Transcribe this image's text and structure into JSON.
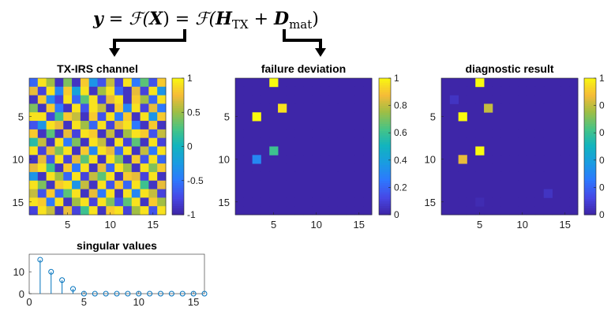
{
  "equation": {
    "parts": [
      "y",
      " = ",
      "ℱ(",
      "X",
      ") = ",
      "ℱ(",
      "H",
      "TX",
      " + ",
      "D",
      "mat",
      ")"
    ]
  },
  "chart_data": [
    {
      "type": "heatmap",
      "title": "TX-IRS channel",
      "x_ticks": [
        "5",
        "10",
        "15"
      ],
      "y_ticks": [
        "5",
        "10",
        "15"
      ],
      "colorbar_ticks": [
        "1",
        "0.5",
        "0",
        "-0.5",
        "-1"
      ],
      "clim": [
        -1,
        1
      ],
      "colormap": "parula",
      "grid": false,
      "values": [
        [
          -0.6,
          0.9,
          0.5,
          -0.9,
          0.4,
          -0.9,
          0.8,
          -0.3,
          -0.7,
          0.6,
          -0.8,
          0.9,
          -0.5,
          0.3,
          -0.7,
          0.8
        ],
        [
          0.7,
          -0.8,
          0.9,
          -0.4,
          0.8,
          -0.2,
          0.9,
          -0.9,
          0.5,
          0.9,
          -0.6,
          -0.9,
          0.7,
          -0.8,
          0.9,
          -0.3
        ],
        [
          -0.9,
          0.8,
          -0.4,
          -0.8,
          0.9,
          -0.6,
          0.3,
          0.9,
          -0.8,
          0.7,
          0.9,
          -0.9,
          0.8,
          0.5,
          -0.6,
          0.9
        ],
        [
          0.4,
          -0.9,
          0.8,
          -0.5,
          -0.9,
          0.9,
          -0.7,
          0.9,
          0.6,
          -0.9,
          0.8,
          -0.4,
          0.9,
          -0.8,
          0.7,
          -0.5
        ],
        [
          0.9,
          0.9,
          -0.8,
          0.2,
          0.8,
          0.6,
          -0.9,
          0.8,
          -0.7,
          0.9,
          -0.5,
          0.8,
          -0.9,
          0.9,
          -0.3,
          0.8
        ],
        [
          -0.7,
          -0.3,
          0.9,
          0.7,
          -0.9,
          0.9,
          0.5,
          -0.6,
          0.9,
          -0.8,
          0.7,
          0.9,
          -0.5,
          -0.9,
          0.8,
          -0.9
        ],
        [
          0.8,
          -0.9,
          0.3,
          -0.9,
          0.7,
          -0.8,
          0.9,
          0.8,
          -0.9,
          0.6,
          -0.9,
          0.5,
          0.9,
          0.8,
          -0.7,
          0.6
        ],
        [
          0.1,
          0.6,
          -0.9,
          0.9,
          -0.5,
          0.4,
          -0.9,
          0.9,
          0.6,
          -0.9,
          0.9,
          -0.8,
          0.3,
          -0.9,
          0.9,
          -0.8
        ],
        [
          0.9,
          -0.8,
          0.7,
          0.4,
          0.9,
          -0.9,
          0.8,
          -0.4,
          0.9,
          0.7,
          -0.6,
          0.9,
          -0.9,
          0.6,
          -0.5,
          0.9
        ],
        [
          -0.9,
          0.7,
          -0.7,
          0.9,
          -0.8,
          0.7,
          0.3,
          0.9,
          -0.9,
          0.9,
          0.4,
          -0.9,
          0.8,
          -0.7,
          0.9,
          -0.6
        ],
        [
          0.7,
          0.9,
          0.2,
          -0.9,
          0.8,
          -0.5,
          0.9,
          -0.9,
          0.7,
          -0.6,
          0.9,
          0.5,
          -0.9,
          0.9,
          0.4,
          0.8
        ],
        [
          -0.3,
          -0.9,
          0.9,
          0.5,
          -0.6,
          0.9,
          -0.8,
          0.6,
          0.3,
          0.9,
          -0.9,
          0.8,
          0.7,
          -0.8,
          0.9,
          -0.9
        ],
        [
          0.9,
          0.4,
          -0.9,
          0.8,
          0.9,
          -0.3,
          0.6,
          -0.9,
          0.9,
          -0.7,
          0.8,
          -0.6,
          0.9,
          0.2,
          -0.9,
          0.7
        ],
        [
          0.6,
          -0.7,
          0.8,
          -0.6,
          0.3,
          0.9,
          -0.9,
          0.7,
          -0.5,
          0.9,
          -0.9,
          0.9,
          -0.4,
          0.9,
          0.6,
          -0.8
        ],
        [
          0.9,
          0.8,
          -0.5,
          0.9,
          -0.9,
          0.5,
          0.9,
          -0.8,
          0.9,
          0.4,
          -0.7,
          0.3,
          0.9,
          -0.9,
          0.8,
          0.5
        ],
        [
          -0.8,
          0.9,
          0.6,
          -0.9,
          0.7,
          -0.8,
          0.2,
          0.9,
          -0.9,
          0.8,
          0.9,
          -0.8,
          0.5,
          0.9,
          -0.7,
          0.9
        ]
      ]
    },
    {
      "type": "heatmap",
      "title": "failure deviation",
      "x_ticks": [
        "5",
        "10",
        "15"
      ],
      "y_ticks": [
        "5",
        "10",
        "15"
      ],
      "colorbar_ticks": [
        "1",
        "0.8",
        "0.6",
        "0.4",
        "0.2",
        "0"
      ],
      "clim": [
        0,
        1
      ],
      "colormap": "parula",
      "background_value": 0,
      "points": [
        {
          "x": 5,
          "y": 1,
          "v": 1.0
        },
        {
          "x": 6,
          "y": 4,
          "v": 0.95
        },
        {
          "x": 3,
          "y": 5,
          "v": 1.0
        },
        {
          "x": 5,
          "y": 9,
          "v": 0.6
        },
        {
          "x": 3,
          "y": 10,
          "v": 0.3
        }
      ]
    },
    {
      "type": "heatmap",
      "title": "diagnostic result",
      "x_ticks": [
        "5",
        "10",
        "15"
      ],
      "y_ticks": [
        "5",
        "10",
        "15"
      ],
      "colorbar_ticks": [
        "1",
        "0",
        "0",
        "0",
        "0",
        "0"
      ],
      "clim": [
        0,
        1
      ],
      "colormap": "parula",
      "background_value": 0,
      "points": [
        {
          "x": 5,
          "y": 1,
          "v": 1.0
        },
        {
          "x": 2,
          "y": 3,
          "v": 0.05
        },
        {
          "x": 6,
          "y": 4,
          "v": 0.8
        },
        {
          "x": 3,
          "y": 5,
          "v": 1.0
        },
        {
          "x": 5,
          "y": 9,
          "v": 1.0
        },
        {
          "x": 3,
          "y": 10,
          "v": 0.85
        },
        {
          "x": 13,
          "y": 14,
          "v": 0.05
        },
        {
          "x": 5,
          "y": 15,
          "v": 0.02
        }
      ]
    },
    {
      "type": "stem",
      "title": "singular values",
      "x": [
        1,
        2,
        3,
        4,
        5,
        6,
        7,
        8,
        9,
        10,
        11,
        12,
        13,
        14,
        15,
        16
      ],
      "values": [
        15.5,
        10,
        6.2,
        2.2,
        0,
        0,
        0,
        0,
        0,
        0,
        0,
        0,
        0,
        0,
        0,
        0
      ],
      "xlim": [
        0,
        16
      ],
      "ylim": [
        0,
        18
      ],
      "x_ticks": [
        "0",
        "5",
        "10",
        "15"
      ],
      "y_ticks": [
        "0",
        "10"
      ],
      "color": "#0072bd"
    }
  ]
}
